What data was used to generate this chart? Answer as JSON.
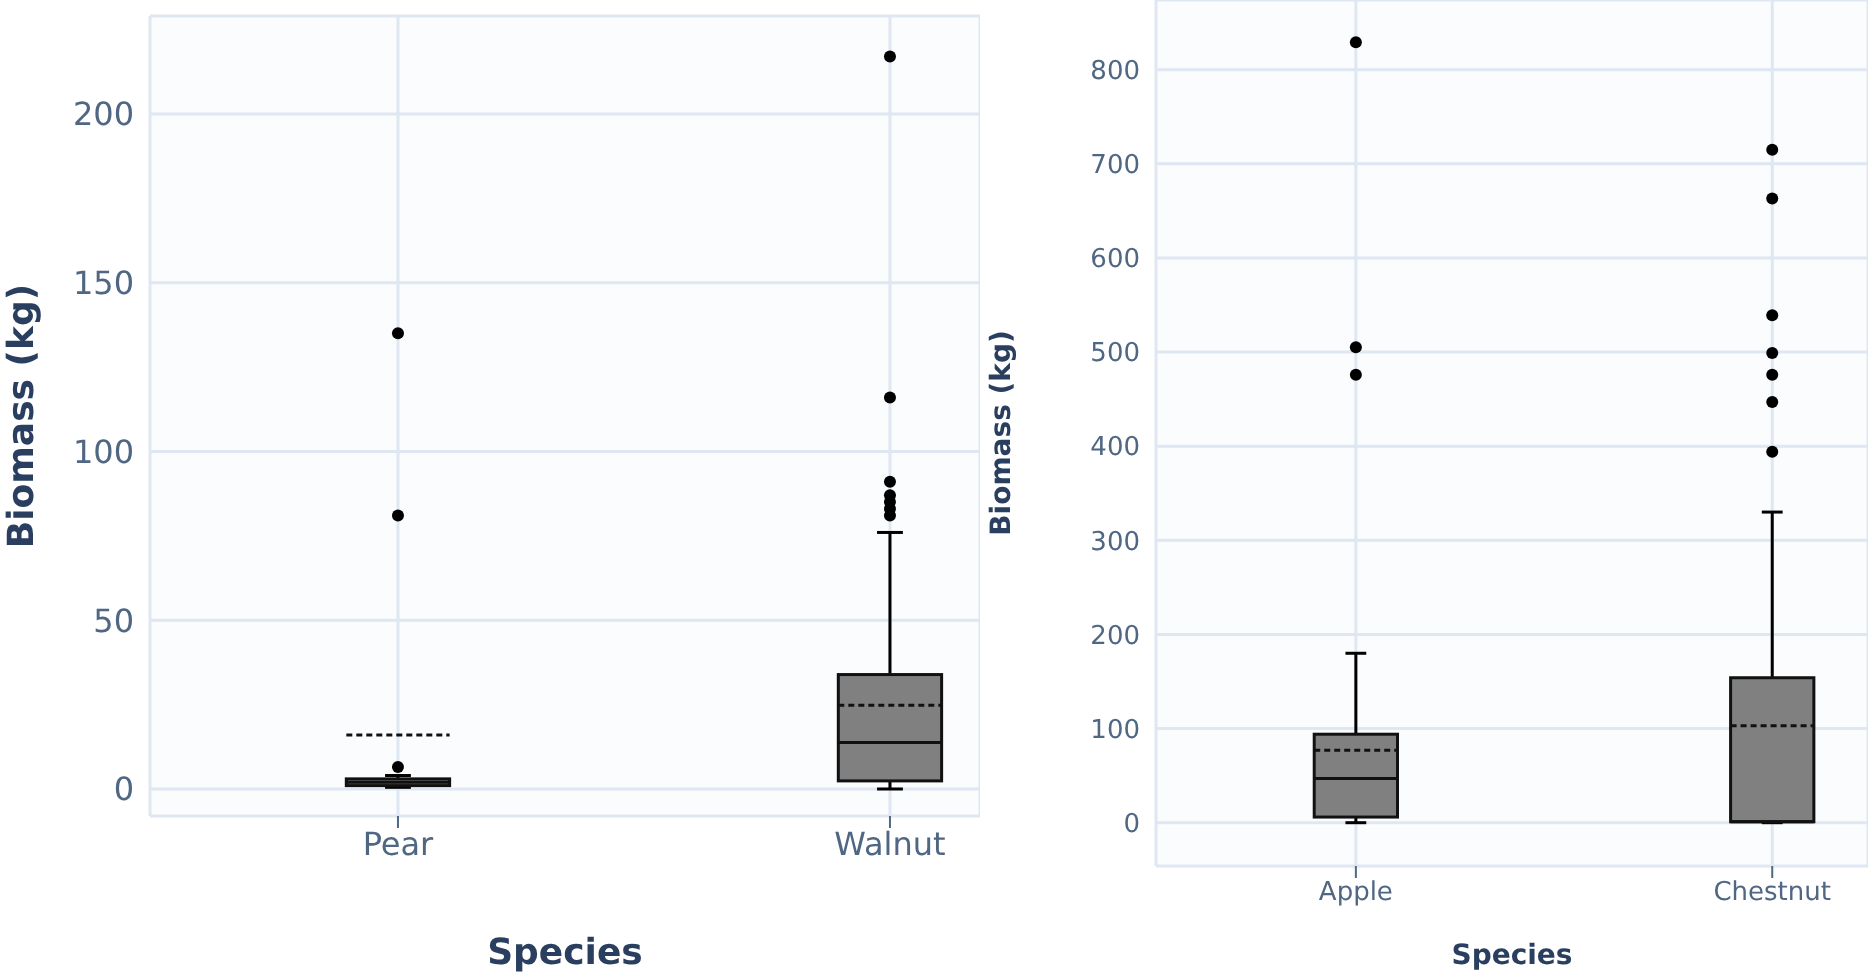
{
  "chart_data": [
    {
      "type": "box",
      "xlabel": "Species",
      "ylabel": "Biomass (kg)",
      "categories": [
        "Pear",
        "Walnut"
      ],
      "ylim": [
        -8,
        229
      ],
      "yticks": [
        0,
        50,
        100,
        150,
        200
      ],
      "grid": true,
      "series": [
        {
          "color": "#808080",
          "boxes": [
            {
              "low": 0.5,
              "q1": 1,
              "median": 2,
              "q3": 3,
              "high": 4,
              "mean": 16,
              "outliers": [
                6.5,
                81,
                135
              ]
            },
            {
              "low": 0,
              "q1": 2.4,
              "median": 13.8,
              "q3": 33.9,
              "high": 76,
              "mean": 24.8,
              "outliers": [
                81,
                83,
                85,
                87,
                91,
                116,
                217
              ]
            }
          ]
        }
      ]
    },
    {
      "type": "box",
      "xlabel": "Species",
      "ylabel": "Biomass (kg)",
      "categories": [
        "Apple",
        "Chestnut"
      ],
      "ylim": [
        -46,
        874
      ],
      "yticks": [
        0,
        100,
        200,
        300,
        400,
        500,
        600,
        700,
        800
      ],
      "grid": true,
      "series": [
        {
          "color": "#808080",
          "boxes": [
            {
              "low": 0,
              "q1": 6,
              "median": 47,
              "q3": 94,
              "high": 180,
              "mean": 77,
              "outliers": [
                476,
                505,
                829
              ]
            },
            {
              "low": 0,
              "q1": 1,
              "median": 1,
              "q3": 154,
              "high": 330,
              "mean": 103,
              "outliers": [
                394,
                447,
                476,
                499,
                539,
                663,
                715
              ]
            }
          ]
        }
      ]
    }
  ]
}
